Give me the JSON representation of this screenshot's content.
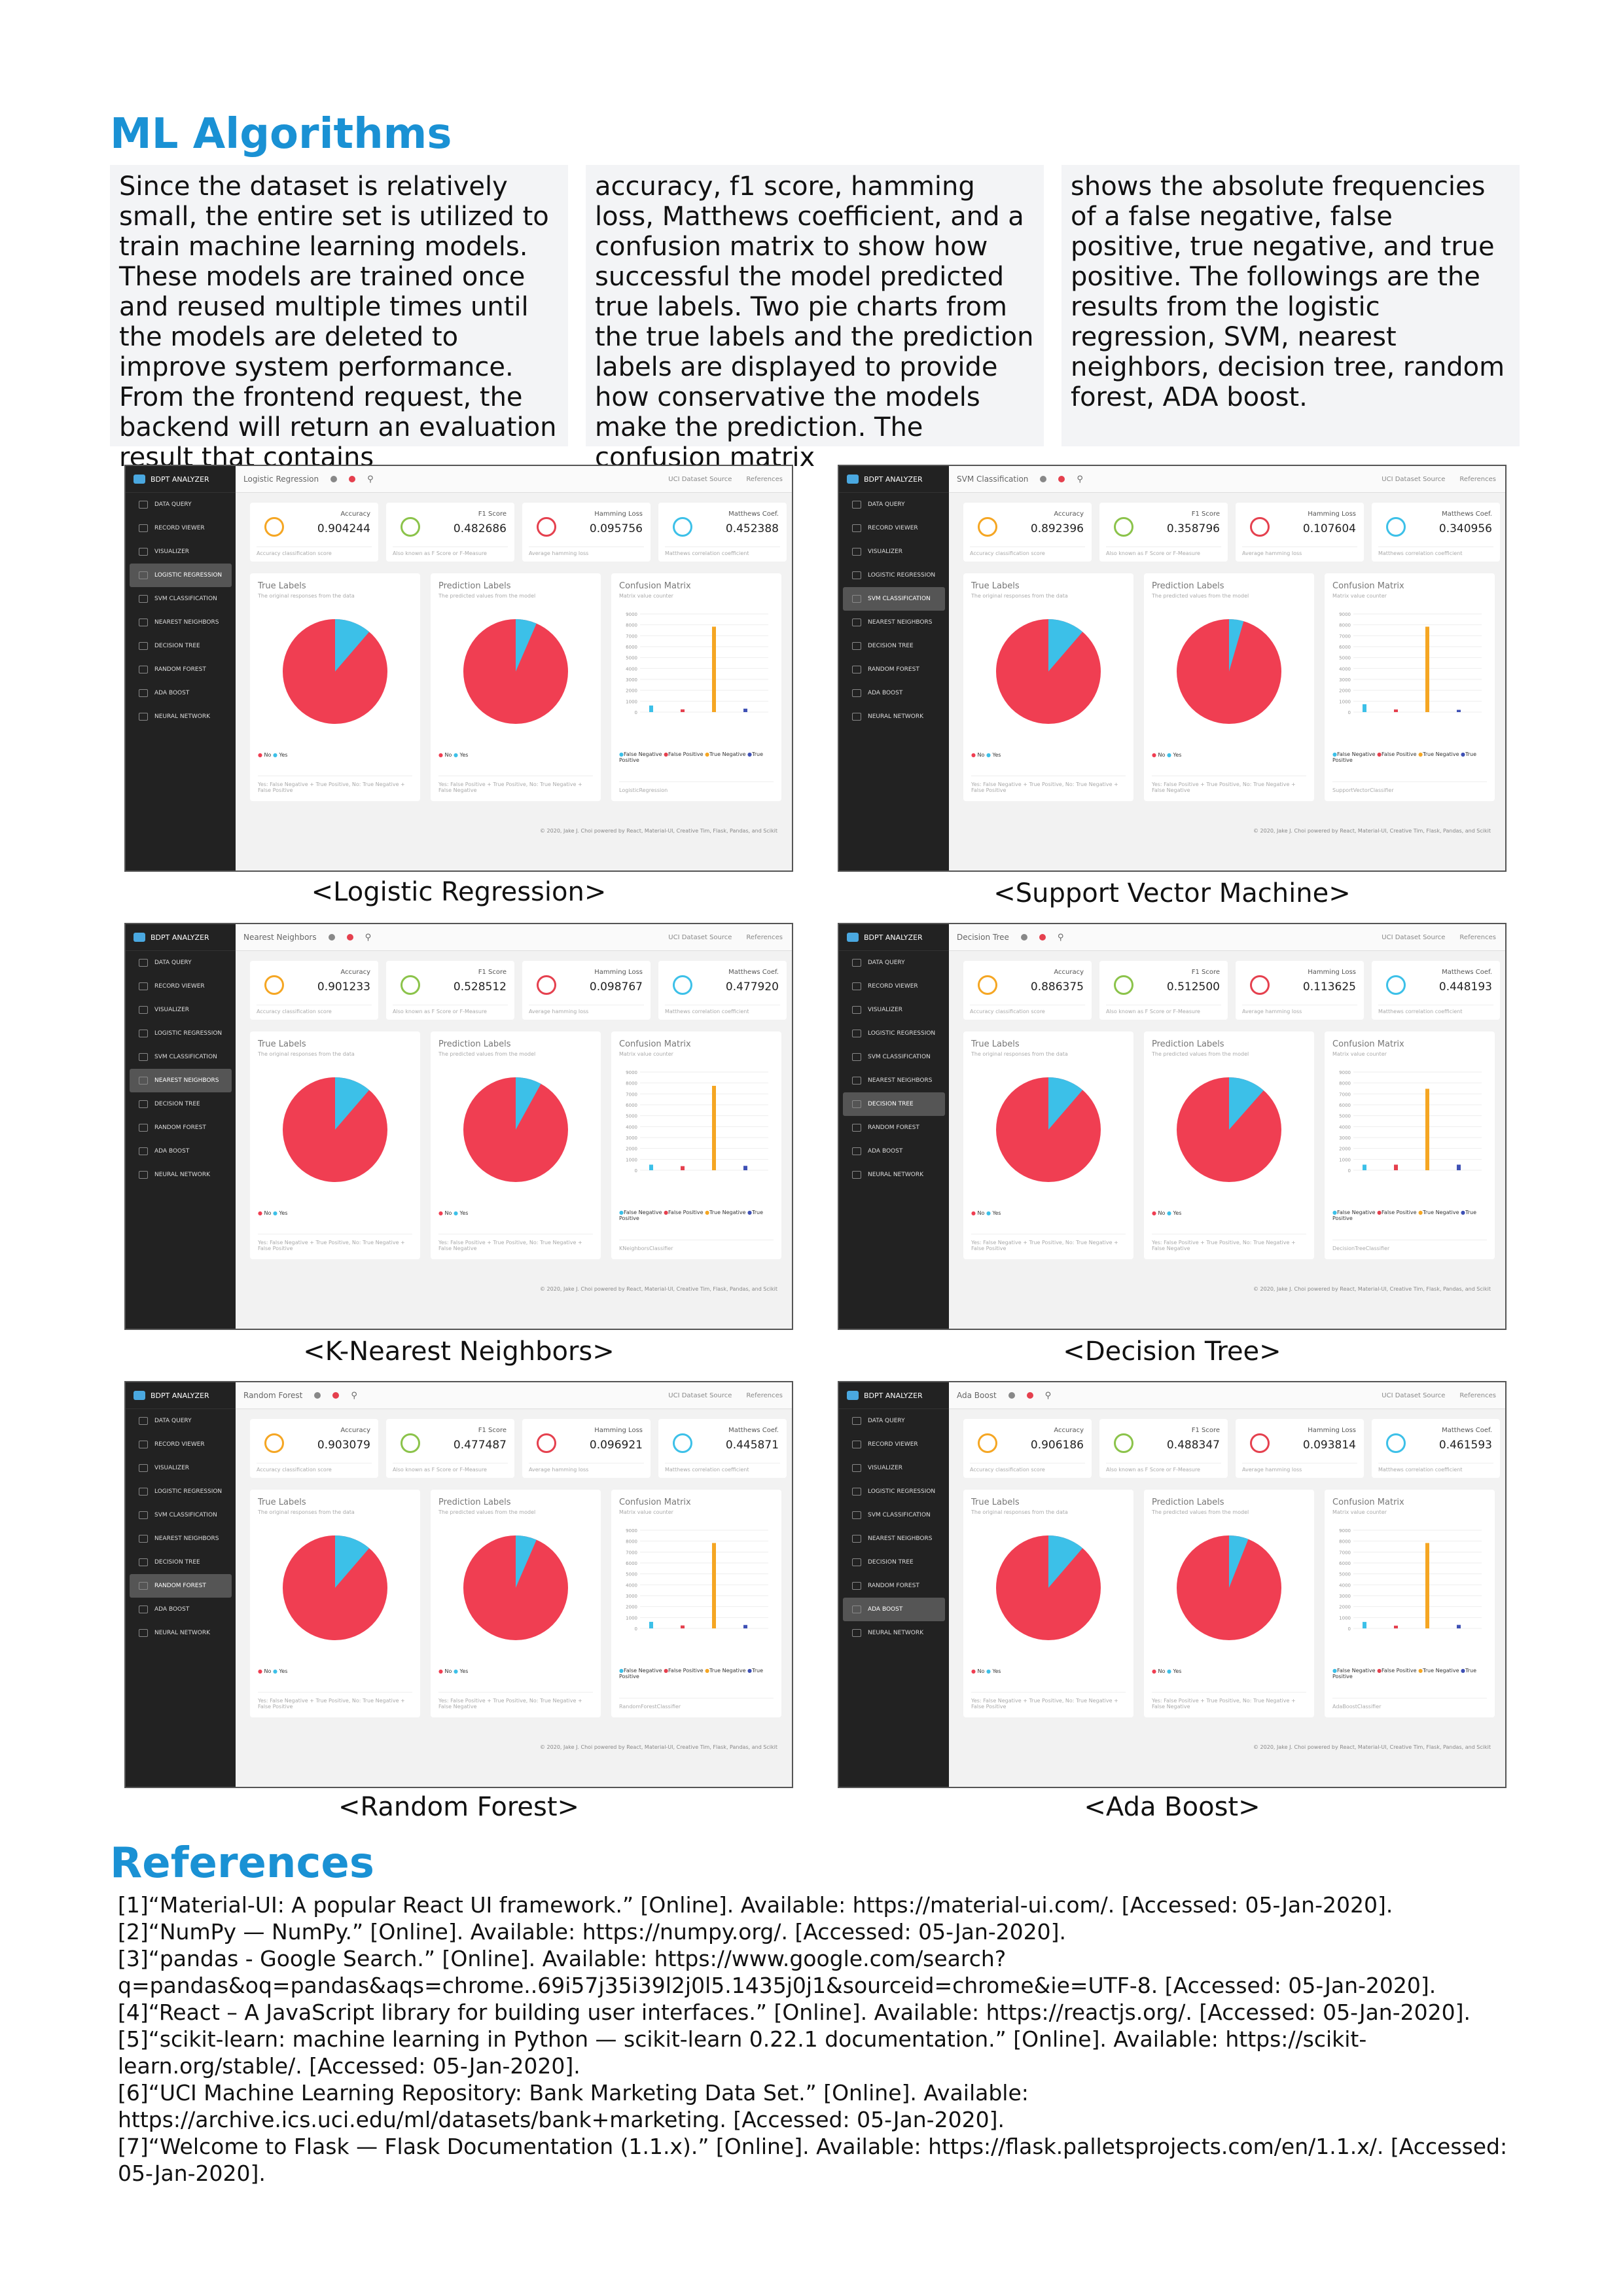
{
  "section_title": "ML Algorithms",
  "intro_columns": [
    "Since the dataset is relatively small, the entire set is utilized to train machine learning models. These models are trained once and reused multiple times until the models are deleted to improve system performance. From the frontend request, the backend will return an evaluation result that contains",
    "accuracy, f1 score, hamming loss, Matthews coefficient, and a confusion matrix to show how successful the model predicted true labels. Two pie charts from the true labels and the prediction labels are displayed to provide how conservative the models make the prediction. The confusion matrix",
    "shows the absolute frequencies of a false negative, false positive, true negative, and true positive. The followings are the results from the logistic regression, SVM, nearest neighbors, decision tree, random forest, ADA boost."
  ],
  "app": {
    "brand": "BDPT ANALYZER",
    "nav": [
      "DATA QUERY",
      "RECORD VIEWER",
      "VISUALIZER",
      "LOGISTIC REGRESSION",
      "SVM CLASSIFICATION",
      "NEAREST NEIGHBORS",
      "DECISION TREE",
      "RANDOM FOREST",
      "ADA BOOST",
      "NEURAL NETWORK"
    ],
    "top_links": [
      "UCI Dataset Source",
      "References"
    ],
    "metric_labels": [
      "Accuracy",
      "F1 Score",
      "Hamming Loss",
      "Matthews Coef."
    ],
    "metric_subs": [
      "Accuracy classification score",
      "Also known as F Score or F-Measure",
      "Average hamming loss",
      "Matthews correlation coefficient"
    ],
    "card_titles": [
      "True Labels",
      "Prediction Labels",
      "Confusion Matrix"
    ],
    "card_subs": [
      "The original responses from the data",
      "The predicted values from the model",
      "Matrix value counter"
    ],
    "pie_legend": [
      "No",
      "Yes"
    ],
    "cm_legend": [
      "False Negative",
      "False Positive",
      "True Negative",
      "True Positive"
    ],
    "cm_yticks": [
      "9000",
      "8000",
      "7000",
      "6000",
      "5000",
      "4000",
      "3000",
      "2000",
      "1000",
      "0"
    ],
    "true_note": "Yes: False Negative + True Positive, No: True Negative + False Positive",
    "pred_note": "Yes: False Positive + True Positive, No: True Negative + False Negative",
    "footer": "© 2020, Jake J. Choi powered by React, Material-UI, Creative Tim, Flask, Pandas, and Scikit",
    "colors": {
      "no": "#f03e52",
      "yes": "#3cc0e8",
      "tn": "#f5a623",
      "tp": "#3f51b5",
      "fp": "#e5404e",
      "fn": "#3cc0e8"
    }
  },
  "models": [
    {
      "title": "Logistic Regression",
      "caption": "<Logistic Regression>",
      "active": 3,
      "accuracy": "0.904244",
      "f1": "0.482686",
      "hamming": "0.095756",
      "mcc": "0.452388",
      "estimator": "LogisticRegression",
      "true_yes": 0.113,
      "pred_yes": 0.065,
      "cm": {
        "fn": 0.067,
        "fp": 0.028,
        "tn": 0.87,
        "tp": 0.035
      }
    },
    {
      "title": "SVM Classification",
      "caption": "<Support Vector Machine>",
      "active": 4,
      "accuracy": "0.892396",
      "f1": "0.358796",
      "hamming": "0.107604",
      "mcc": "0.340956",
      "estimator": "SupportVectorClassifier",
      "true_yes": 0.113,
      "pred_yes": 0.045,
      "cm": {
        "fn": 0.08,
        "fp": 0.027,
        "tn": 0.87,
        "tp": 0.023
      }
    },
    {
      "title": "Nearest Neighbors",
      "caption": "<K-Nearest Neighbors>",
      "active": 5,
      "accuracy": "0.901233",
      "f1": "0.528512",
      "hamming": "0.098767",
      "mcc": "0.477920",
      "estimator": "KNeighborsClassifier",
      "true_yes": 0.113,
      "pred_yes": 0.08,
      "cm": {
        "fn": 0.057,
        "fp": 0.042,
        "tn": 0.86,
        "tp": 0.045
      }
    },
    {
      "title": "Decision Tree",
      "caption": "<Decision Tree>",
      "active": 6,
      "accuracy": "0.886375",
      "f1": "0.512500",
      "hamming": "0.113625",
      "mcc": "0.448193",
      "estimator": "DecisionTreeClassifier",
      "true_yes": 0.113,
      "pred_yes": 0.115,
      "cm": {
        "fn": 0.057,
        "fp": 0.057,
        "tn": 0.83,
        "tp": 0.057
      }
    },
    {
      "title": "Random Forest",
      "caption": "<Random Forest>",
      "active": 7,
      "accuracy": "0.903079",
      "f1": "0.477487",
      "hamming": "0.096921",
      "mcc": "0.445871",
      "estimator": "RandomForestClassifier",
      "true_yes": 0.113,
      "pred_yes": 0.065,
      "cm": {
        "fn": 0.067,
        "fp": 0.03,
        "tn": 0.87,
        "tp": 0.035
      }
    },
    {
      "title": "Ada Boost",
      "caption": "<Ada Boost>",
      "active": 8,
      "accuracy": "0.906186",
      "f1": "0.488347",
      "hamming": "0.093814",
      "mcc": "0.461593",
      "estimator": "AdaBoostClassifier",
      "true_yes": 0.113,
      "pred_yes": 0.06,
      "cm": {
        "fn": 0.066,
        "fp": 0.028,
        "tn": 0.87,
        "tp": 0.036
      }
    }
  ],
  "references_title": "References",
  "references": [
    "[1]“Material-UI: A popular React UI framework.” [Online]. Available: https://material-ui.com/. [Accessed: 05-Jan-2020].",
    "[2]“NumPy — NumPy.” [Online]. Available: https://numpy.org/. [Accessed: 05-Jan-2020].",
    "[3]“pandas - Google Search.” [Online]. Available: https://www.google.com/search?q=pandas&oq=pandas&aqs=chrome..69i57j35i39l2j0l5.1435j0j1&sourceid=chrome&ie=UTF-8. [Accessed: 05-Jan-2020].",
    "[4]“React – A JavaScript library for building user interfaces.” [Online]. Available: https://reactjs.org/. [Accessed: 05-Jan-2020].",
    "[5]“scikit-learn: machine learning in Python — scikit-learn 0.22.1 documentation.” [Online]. Available: https://scikit-learn.org/stable/. [Accessed: 05-Jan-2020].",
    "[6]“UCI Machine Learning Repository: Bank Marketing Data Set.” [Online]. Available: https://archive.ics.uci.edu/ml/datasets/bank+marketing. [Accessed: 05-Jan-2020].",
    "[7]“Welcome to Flask — Flask Documentation (1.1.x).” [Online]. Available: https://flask.palletsprojects.com/en/1.1.x/. [Accessed: 05-Jan-2020]."
  ]
}
